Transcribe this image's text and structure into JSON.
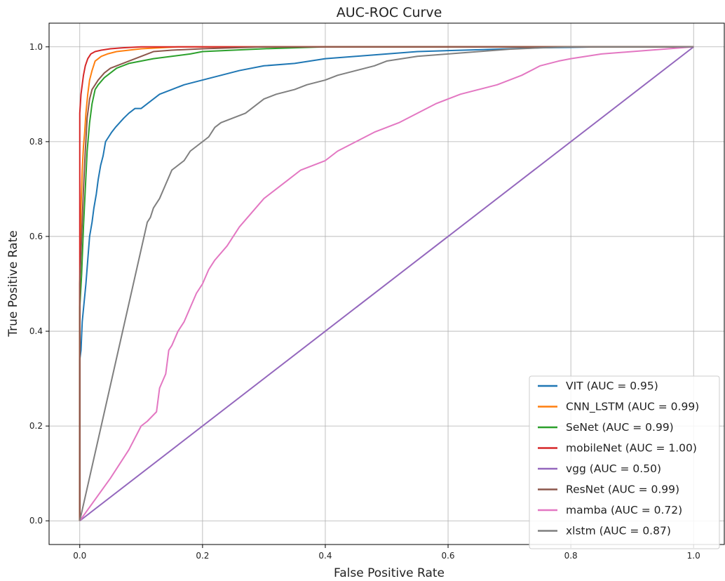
{
  "chart_data": {
    "type": "line",
    "title": "AUC-ROC Curve",
    "xlabel": "False Positive Rate",
    "ylabel": "True Positive Rate",
    "xlim": [
      -0.05,
      1.05
    ],
    "ylim": [
      -0.05,
      1.05
    ],
    "xticks": [
      0.0,
      0.2,
      0.4,
      0.6,
      0.8,
      1.0
    ],
    "yticks": [
      0.0,
      0.2,
      0.4,
      0.6,
      0.8,
      1.0
    ],
    "xtick_labels": [
      "0.0",
      "0.2",
      "0.4",
      "0.6",
      "0.8",
      "1.0"
    ],
    "ytick_labels": [
      "0.0",
      "0.2",
      "0.4",
      "0.6",
      "0.8",
      "1.0"
    ],
    "grid": true,
    "legend_position": "lower-right",
    "series": [
      {
        "name": "VIT (AUC = 0.95)",
        "color": "#1f77b4",
        "points": [
          [
            0,
            0
          ],
          [
            0,
            0.34
          ],
          [
            0.002,
            0.36
          ],
          [
            0.004,
            0.42
          ],
          [
            0.007,
            0.46
          ],
          [
            0.01,
            0.5
          ],
          [
            0.013,
            0.55
          ],
          [
            0.016,
            0.6
          ],
          [
            0.02,
            0.63
          ],
          [
            0.023,
            0.66
          ],
          [
            0.027,
            0.69
          ],
          [
            0.03,
            0.72
          ],
          [
            0.034,
            0.75
          ],
          [
            0.038,
            0.77
          ],
          [
            0.042,
            0.8
          ],
          [
            0.047,
            0.81
          ],
          [
            0.052,
            0.82
          ],
          [
            0.058,
            0.83
          ],
          [
            0.065,
            0.84
          ],
          [
            0.072,
            0.85
          ],
          [
            0.08,
            0.86
          ],
          [
            0.09,
            0.87
          ],
          [
            0.1,
            0.87
          ],
          [
            0.11,
            0.88
          ],
          [
            0.12,
            0.89
          ],
          [
            0.13,
            0.9
          ],
          [
            0.15,
            0.91
          ],
          [
            0.17,
            0.92
          ],
          [
            0.2,
            0.93
          ],
          [
            0.23,
            0.94
          ],
          [
            0.26,
            0.95
          ],
          [
            0.3,
            0.96
          ],
          [
            0.35,
            0.965
          ],
          [
            0.4,
            0.975
          ],
          [
            0.45,
            0.98
          ],
          [
            0.5,
            0.985
          ],
          [
            0.55,
            0.99
          ],
          [
            0.6,
            0.992
          ],
          [
            0.65,
            0.994
          ],
          [
            0.7,
            0.996
          ],
          [
            0.75,
            0.998
          ],
          [
            0.8,
            0.999
          ],
          [
            0.85,
            1.0
          ],
          [
            1.0,
            1.0
          ]
        ]
      },
      {
        "name": "CNN_LSTM (AUC = 0.99)",
        "color": "#ff7f0e",
        "points": [
          [
            0,
            0
          ],
          [
            0,
            0.5
          ],
          [
            0.002,
            0.66
          ],
          [
            0.004,
            0.74
          ],
          [
            0.006,
            0.79
          ],
          [
            0.008,
            0.82
          ],
          [
            0.01,
            0.86
          ],
          [
            0.013,
            0.9
          ],
          [
            0.016,
            0.93
          ],
          [
            0.02,
            0.95
          ],
          [
            0.025,
            0.97
          ],
          [
            0.03,
            0.975
          ],
          [
            0.035,
            0.98
          ],
          [
            0.045,
            0.985
          ],
          [
            0.06,
            0.99
          ],
          [
            0.08,
            0.993
          ],
          [
            0.1,
            0.996
          ],
          [
            0.13,
            0.998
          ],
          [
            0.16,
            1.0
          ],
          [
            1.0,
            1.0
          ]
        ]
      },
      {
        "name": "SeNet (AUC = 0.99)",
        "color": "#2ca02c",
        "points": [
          [
            0,
            0
          ],
          [
            0,
            0.45
          ],
          [
            0.003,
            0.52
          ],
          [
            0.006,
            0.62
          ],
          [
            0.009,
            0.7
          ],
          [
            0.012,
            0.78
          ],
          [
            0.016,
            0.84
          ],
          [
            0.02,
            0.88
          ],
          [
            0.025,
            0.91
          ],
          [
            0.03,
            0.92
          ],
          [
            0.04,
            0.935
          ],
          [
            0.05,
            0.945
          ],
          [
            0.06,
            0.955
          ],
          [
            0.07,
            0.96
          ],
          [
            0.08,
            0.965
          ],
          [
            0.1,
            0.97
          ],
          [
            0.12,
            0.975
          ],
          [
            0.15,
            0.98
          ],
          [
            0.18,
            0.985
          ],
          [
            0.2,
            0.99
          ],
          [
            0.25,
            0.993
          ],
          [
            0.3,
            0.996
          ],
          [
            0.35,
            0.998
          ],
          [
            0.4,
            1.0
          ],
          [
            1.0,
            1.0
          ]
        ]
      },
      {
        "name": "mobileNet (AUC = 1.00)",
        "color": "#d62728",
        "points": [
          [
            0,
            0
          ],
          [
            0,
            0.86
          ],
          [
            0.002,
            0.9
          ],
          [
            0.004,
            0.92
          ],
          [
            0.006,
            0.94
          ],
          [
            0.009,
            0.96
          ],
          [
            0.013,
            0.975
          ],
          [
            0.018,
            0.985
          ],
          [
            0.025,
            0.99
          ],
          [
            0.035,
            0.993
          ],
          [
            0.05,
            0.996
          ],
          [
            0.07,
            0.998
          ],
          [
            0.1,
            1.0
          ],
          [
            1.0,
            1.0
          ]
        ]
      },
      {
        "name": "vgg (AUC = 0.50)",
        "color": "#9467bd",
        "points": [
          [
            0,
            0
          ],
          [
            1.0,
            1.0
          ]
        ]
      },
      {
        "name": "ResNet (AUC = 0.99)",
        "color": "#8c564b",
        "points": [
          [
            0,
            0
          ],
          [
            0,
            0.5
          ],
          [
            0.003,
            0.6
          ],
          [
            0.006,
            0.7
          ],
          [
            0.009,
            0.78
          ],
          [
            0.012,
            0.85
          ],
          [
            0.016,
            0.89
          ],
          [
            0.02,
            0.91
          ],
          [
            0.025,
            0.92
          ],
          [
            0.03,
            0.93
          ],
          [
            0.04,
            0.945
          ],
          [
            0.05,
            0.955
          ],
          [
            0.06,
            0.96
          ],
          [
            0.07,
            0.965
          ],
          [
            0.08,
            0.97
          ],
          [
            0.1,
            0.98
          ],
          [
            0.12,
            0.99
          ],
          [
            0.15,
            0.993
          ],
          [
            0.2,
            0.996
          ],
          [
            0.25,
            0.998
          ],
          [
            0.3,
            1.0
          ],
          [
            1.0,
            1.0
          ]
        ]
      },
      {
        "name": "mamba (AUC = 0.72)",
        "color": "#e377c2",
        "points": [
          [
            0,
            0
          ],
          [
            0.05,
            0.09
          ],
          [
            0.08,
            0.15
          ],
          [
            0.1,
            0.2
          ],
          [
            0.11,
            0.21
          ],
          [
            0.125,
            0.23
          ],
          [
            0.13,
            0.28
          ],
          [
            0.14,
            0.31
          ],
          [
            0.145,
            0.36
          ],
          [
            0.15,
            0.37
          ],
          [
            0.16,
            0.4
          ],
          [
            0.17,
            0.42
          ],
          [
            0.18,
            0.45
          ],
          [
            0.19,
            0.48
          ],
          [
            0.2,
            0.5
          ],
          [
            0.21,
            0.53
          ],
          [
            0.22,
            0.55
          ],
          [
            0.24,
            0.58
          ],
          [
            0.26,
            0.62
          ],
          [
            0.28,
            0.65
          ],
          [
            0.3,
            0.68
          ],
          [
            0.32,
            0.7
          ],
          [
            0.34,
            0.72
          ],
          [
            0.36,
            0.74
          ],
          [
            0.38,
            0.75
          ],
          [
            0.4,
            0.76
          ],
          [
            0.42,
            0.78
          ],
          [
            0.45,
            0.8
          ],
          [
            0.48,
            0.82
          ],
          [
            0.5,
            0.83
          ],
          [
            0.52,
            0.84
          ],
          [
            0.55,
            0.86
          ],
          [
            0.58,
            0.88
          ],
          [
            0.6,
            0.89
          ],
          [
            0.62,
            0.9
          ],
          [
            0.65,
            0.91
          ],
          [
            0.68,
            0.92
          ],
          [
            0.7,
            0.93
          ],
          [
            0.72,
            0.94
          ],
          [
            0.75,
            0.96
          ],
          [
            0.78,
            0.97
          ],
          [
            0.8,
            0.975
          ],
          [
            0.85,
            0.985
          ],
          [
            0.9,
            0.99
          ],
          [
            0.95,
            0.995
          ],
          [
            1.0,
            1.0
          ]
        ]
      },
      {
        "name": "xlstm (AUC = 0.87)",
        "color": "#7f7f7f",
        "points": [
          [
            0,
            0
          ],
          [
            0.11,
            0.63
          ],
          [
            0.115,
            0.64
          ],
          [
            0.12,
            0.66
          ],
          [
            0.13,
            0.68
          ],
          [
            0.14,
            0.71
          ],
          [
            0.15,
            0.74
          ],
          [
            0.16,
            0.75
          ],
          [
            0.17,
            0.76
          ],
          [
            0.18,
            0.78
          ],
          [
            0.19,
            0.79
          ],
          [
            0.2,
            0.8
          ],
          [
            0.21,
            0.81
          ],
          [
            0.22,
            0.83
          ],
          [
            0.23,
            0.84
          ],
          [
            0.25,
            0.85
          ],
          [
            0.27,
            0.86
          ],
          [
            0.29,
            0.88
          ],
          [
            0.3,
            0.89
          ],
          [
            0.32,
            0.9
          ],
          [
            0.35,
            0.91
          ],
          [
            0.37,
            0.92
          ],
          [
            0.4,
            0.93
          ],
          [
            0.42,
            0.94
          ],
          [
            0.45,
            0.95
          ],
          [
            0.48,
            0.96
          ],
          [
            0.5,
            0.97
          ],
          [
            0.55,
            0.98
          ],
          [
            0.6,
            0.985
          ],
          [
            0.65,
            0.99
          ],
          [
            0.7,
            0.995
          ],
          [
            0.75,
            0.998
          ],
          [
            0.8,
            1.0
          ],
          [
            1.0,
            1.0
          ]
        ]
      }
    ]
  }
}
